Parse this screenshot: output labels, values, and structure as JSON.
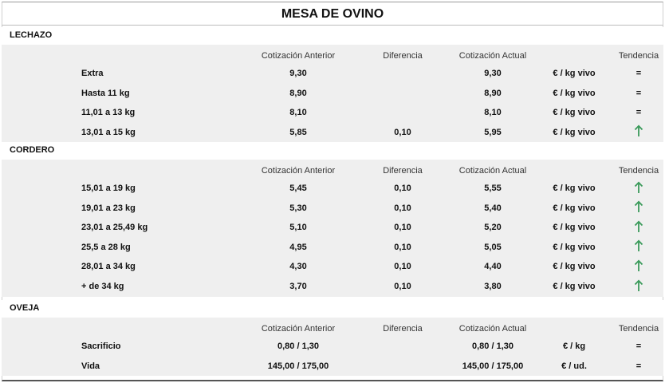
{
  "title": "MESA DE OVINO",
  "colors": {
    "band": "#efefef",
    "up_arrow": "#3a9a5a"
  },
  "headers": {
    "anterior": "Cotización Anterior",
    "diferencia": "Diferencia",
    "actual": "Cotización Actual",
    "tendencia": "Tendencia"
  },
  "sections": [
    {
      "name": "LECHAZO",
      "rows": [
        {
          "label": "Extra",
          "anterior": "9,30",
          "diferencia": "",
          "actual": "9,30",
          "unidad": "€ / kg vivo",
          "tendencia": "="
        },
        {
          "label": "Hasta 11 kg",
          "anterior": "8,90",
          "diferencia": "",
          "actual": "8,90",
          "unidad": "€ / kg vivo",
          "tendencia": "="
        },
        {
          "label": "11,01 a 13 kg",
          "anterior": "8,10",
          "diferencia": "",
          "actual": "8,10",
          "unidad": "€ / kg vivo",
          "tendencia": "="
        },
        {
          "label": "13,01 a 15 kg",
          "anterior": "5,85",
          "diferencia": "0,10",
          "actual": "5,95",
          "unidad": "€ / kg vivo",
          "tendencia": "up-arrow-icon"
        }
      ]
    },
    {
      "name": "CORDERO",
      "rows": [
        {
          "label": "15,01 a 19 kg",
          "anterior": "5,45",
          "diferencia": "0,10",
          "actual": "5,55",
          "unidad": "€ / kg vivo",
          "tendencia": "up-arrow-icon"
        },
        {
          "label": "19,01 a 23 kg",
          "anterior": "5,30",
          "diferencia": "0,10",
          "actual": "5,40",
          "unidad": "€ / kg vivo",
          "tendencia": "up-arrow-icon"
        },
        {
          "label": "23,01 a 25,49 kg",
          "anterior": "5,10",
          "diferencia": "0,10",
          "actual": "5,20",
          "unidad": "€ / kg vivo",
          "tendencia": "up-arrow-icon"
        },
        {
          "label": "25,5 a 28 kg",
          "anterior": "4,95",
          "diferencia": "0,10",
          "actual": "5,05",
          "unidad": "€ / kg vivo",
          "tendencia": "up-arrow-icon"
        },
        {
          "label": "28,01 a 34 kg",
          "anterior": "4,30",
          "diferencia": "0,10",
          "actual": "4,40",
          "unidad": "€ / kg vivo",
          "tendencia": "up-arrow-icon"
        },
        {
          "label": "+ de 34 kg",
          "anterior": "3,70",
          "diferencia": "0,10",
          "actual": "3,80",
          "unidad": "€ / kg vivo",
          "tendencia": "up-arrow-icon"
        }
      ]
    },
    {
      "name": "OVEJA",
      "rows": [
        {
          "label": "Sacrificio",
          "anterior": "0,80 / 1,30",
          "diferencia": "",
          "actual": "0,80 / 1,30",
          "unidad": "€ / kg",
          "tendencia": "="
        },
        {
          "label": "Vida",
          "anterior": "145,00 / 175,00",
          "diferencia": "",
          "actual": "145,00 / 175,00",
          "unidad": "€ / ud.",
          "tendencia": "="
        }
      ]
    }
  ]
}
